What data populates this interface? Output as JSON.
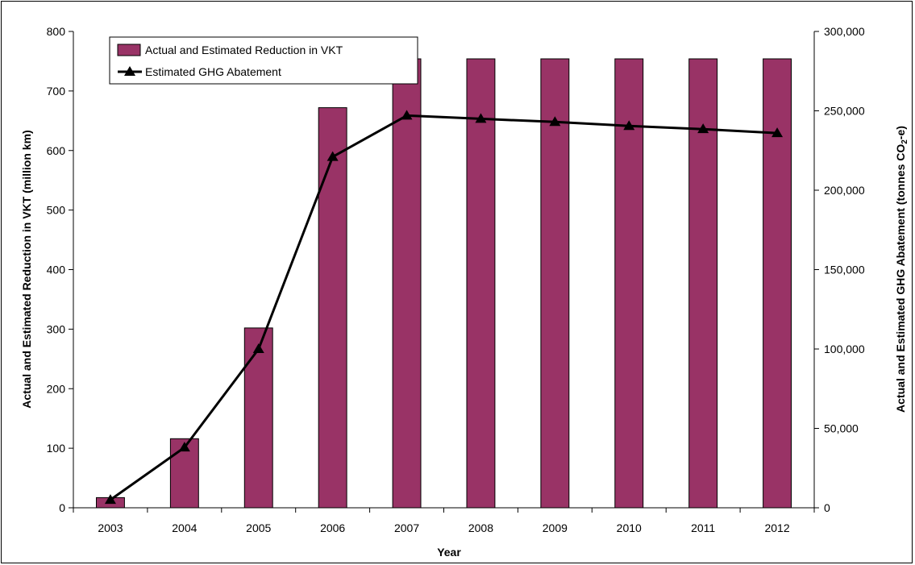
{
  "chart_data": {
    "type": "bar+line",
    "categories": [
      "2003",
      "2004",
      "2005",
      "2006",
      "2007",
      "2008",
      "2009",
      "2010",
      "2011",
      "2012"
    ],
    "series": [
      {
        "name": "Actual and Estimated Reduction in VKT",
        "type": "bar",
        "axis": "left",
        "color": "#993366",
        "values": [
          17,
          116,
          302,
          672,
          754,
          754,
          754,
          754,
          754,
          754
        ]
      },
      {
        "name": "Estimated GHG Abatement",
        "type": "line",
        "axis": "right",
        "color": "#000000",
        "marker": "triangle",
        "values": [
          5000,
          38000,
          100000,
          221000,
          247000,
          245000,
          243000,
          240500,
          238500,
          236000
        ]
      }
    ],
    "xlabel": "Year",
    "ylabel_left": "Actual and Estimated Reduction in VKT (million km)",
    "ylabel_right_main": "Actual and Estimated GHG Abatement (tonnes CO",
    "ylabel_right_sub": "2",
    "ylabel_right_end": "-e)",
    "ylim_left": [
      0,
      800
    ],
    "ylim_right": [
      0,
      300000
    ],
    "yticks_left": [
      "0",
      "100",
      "200",
      "300",
      "400",
      "500",
      "600",
      "700",
      "800"
    ],
    "yticks_right": [
      "0",
      "50,000",
      "100,000",
      "150,000",
      "200,000",
      "250,000",
      "300,000"
    ],
    "legend_position": "top-left",
    "grid": false
  }
}
